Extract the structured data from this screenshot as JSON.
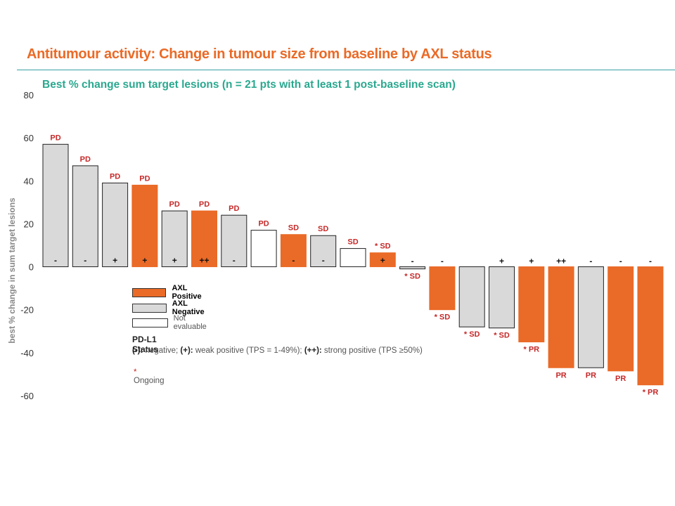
{
  "slide": {
    "title": "Antitumour activity: Change in tumour size from baseline by AXL status",
    "subtitle": "Best % change sum target lesions (n = 21 pts with at least 1 post-baseline scan)"
  },
  "legend": {
    "items": [
      {
        "label": "AXL Positive",
        "color": "#ea6a27",
        "bold": true
      },
      {
        "label": "AXL Negative",
        "color": "#d9d9d9",
        "bold": true
      },
      {
        "label": "Not evaluable",
        "color": "#ffffff",
        "bold": false
      }
    ],
    "pdl1_title": "PD-L1 Status",
    "pdl1_neg_key": "(-):",
    "pdl1_neg_text": " negative; ",
    "pdl1_weak_key": "(+):",
    "pdl1_weak_text": " weak positive (TPS = 1-49%); ",
    "pdl1_strong_key": "(++):",
    "pdl1_strong_text": " strong positive (TPS ≥50%)",
    "ongoing_star": "*",
    "ongoing_label": " Ongoing"
  },
  "colors": {
    "axl_positive": "#ea6a27",
    "axl_negative": "#d9d9d9",
    "not_evaluable": "#ffffff",
    "response_label": "#c62828",
    "title": "#ea6a27",
    "subtitle": "#2aa88f"
  },
  "chart_data": {
    "type": "bar",
    "title": "Best % change sum target lesions (n = 21 pts with at least 1 post-baseline scan)",
    "xlabel": "",
    "ylabel": "best % change in sum target lesions",
    "ylim": [
      -60,
      80
    ],
    "yticks": [
      80,
      60,
      40,
      20,
      0,
      -20,
      -40,
      -60
    ],
    "grid": false,
    "legend_position": "lower-left (inside plot)",
    "bars": [
      {
        "value": 57,
        "axl": "negative",
        "pdl1": "-",
        "response": "PD"
      },
      {
        "value": 47,
        "axl": "negative",
        "pdl1": "-",
        "response": "PD"
      },
      {
        "value": 39,
        "axl": "negative",
        "pdl1": "+",
        "response": "PD"
      },
      {
        "value": 38,
        "axl": "positive",
        "pdl1": "+",
        "response": "PD"
      },
      {
        "value": 26,
        "axl": "negative",
        "pdl1": "+",
        "response": "PD"
      },
      {
        "value": 26,
        "axl": "positive",
        "pdl1": "++",
        "response": "PD"
      },
      {
        "value": 24,
        "axl": "negative",
        "pdl1": "-",
        "response": "PD"
      },
      {
        "value": 17,
        "axl": "not_evaluable",
        "pdl1": "",
        "response": "PD"
      },
      {
        "value": 15,
        "axl": "positive",
        "pdl1": "-",
        "response": "SD"
      },
      {
        "value": 14.5,
        "axl": "negative",
        "pdl1": "-",
        "response": "SD"
      },
      {
        "value": 8.5,
        "axl": "not_evaluable",
        "pdl1": "",
        "response": "SD"
      },
      {
        "value": 6.5,
        "axl": "positive",
        "pdl1": "+",
        "response": "* SD"
      },
      {
        "value": -1,
        "axl": "negative",
        "pdl1": "-",
        "response": "* SD"
      },
      {
        "value": -20,
        "axl": "positive",
        "pdl1": "-",
        "response": "* SD"
      },
      {
        "value": -28,
        "axl": "negative",
        "pdl1": "",
        "response": "* SD"
      },
      {
        "value": -28.5,
        "axl": "negative",
        "pdl1": "+",
        "response": "* SD"
      },
      {
        "value": -35,
        "axl": "positive",
        "pdl1": "+",
        "response": "* PR"
      },
      {
        "value": -47,
        "axl": "positive",
        "pdl1": "++",
        "response": "PR"
      },
      {
        "value": -47,
        "axl": "negative",
        "pdl1": "-",
        "response": "PR"
      },
      {
        "value": -48.5,
        "axl": "positive",
        "pdl1": "-",
        "response": "PR"
      },
      {
        "value": -55,
        "axl": "positive",
        "pdl1": "-",
        "response": "* PR"
      }
    ]
  }
}
